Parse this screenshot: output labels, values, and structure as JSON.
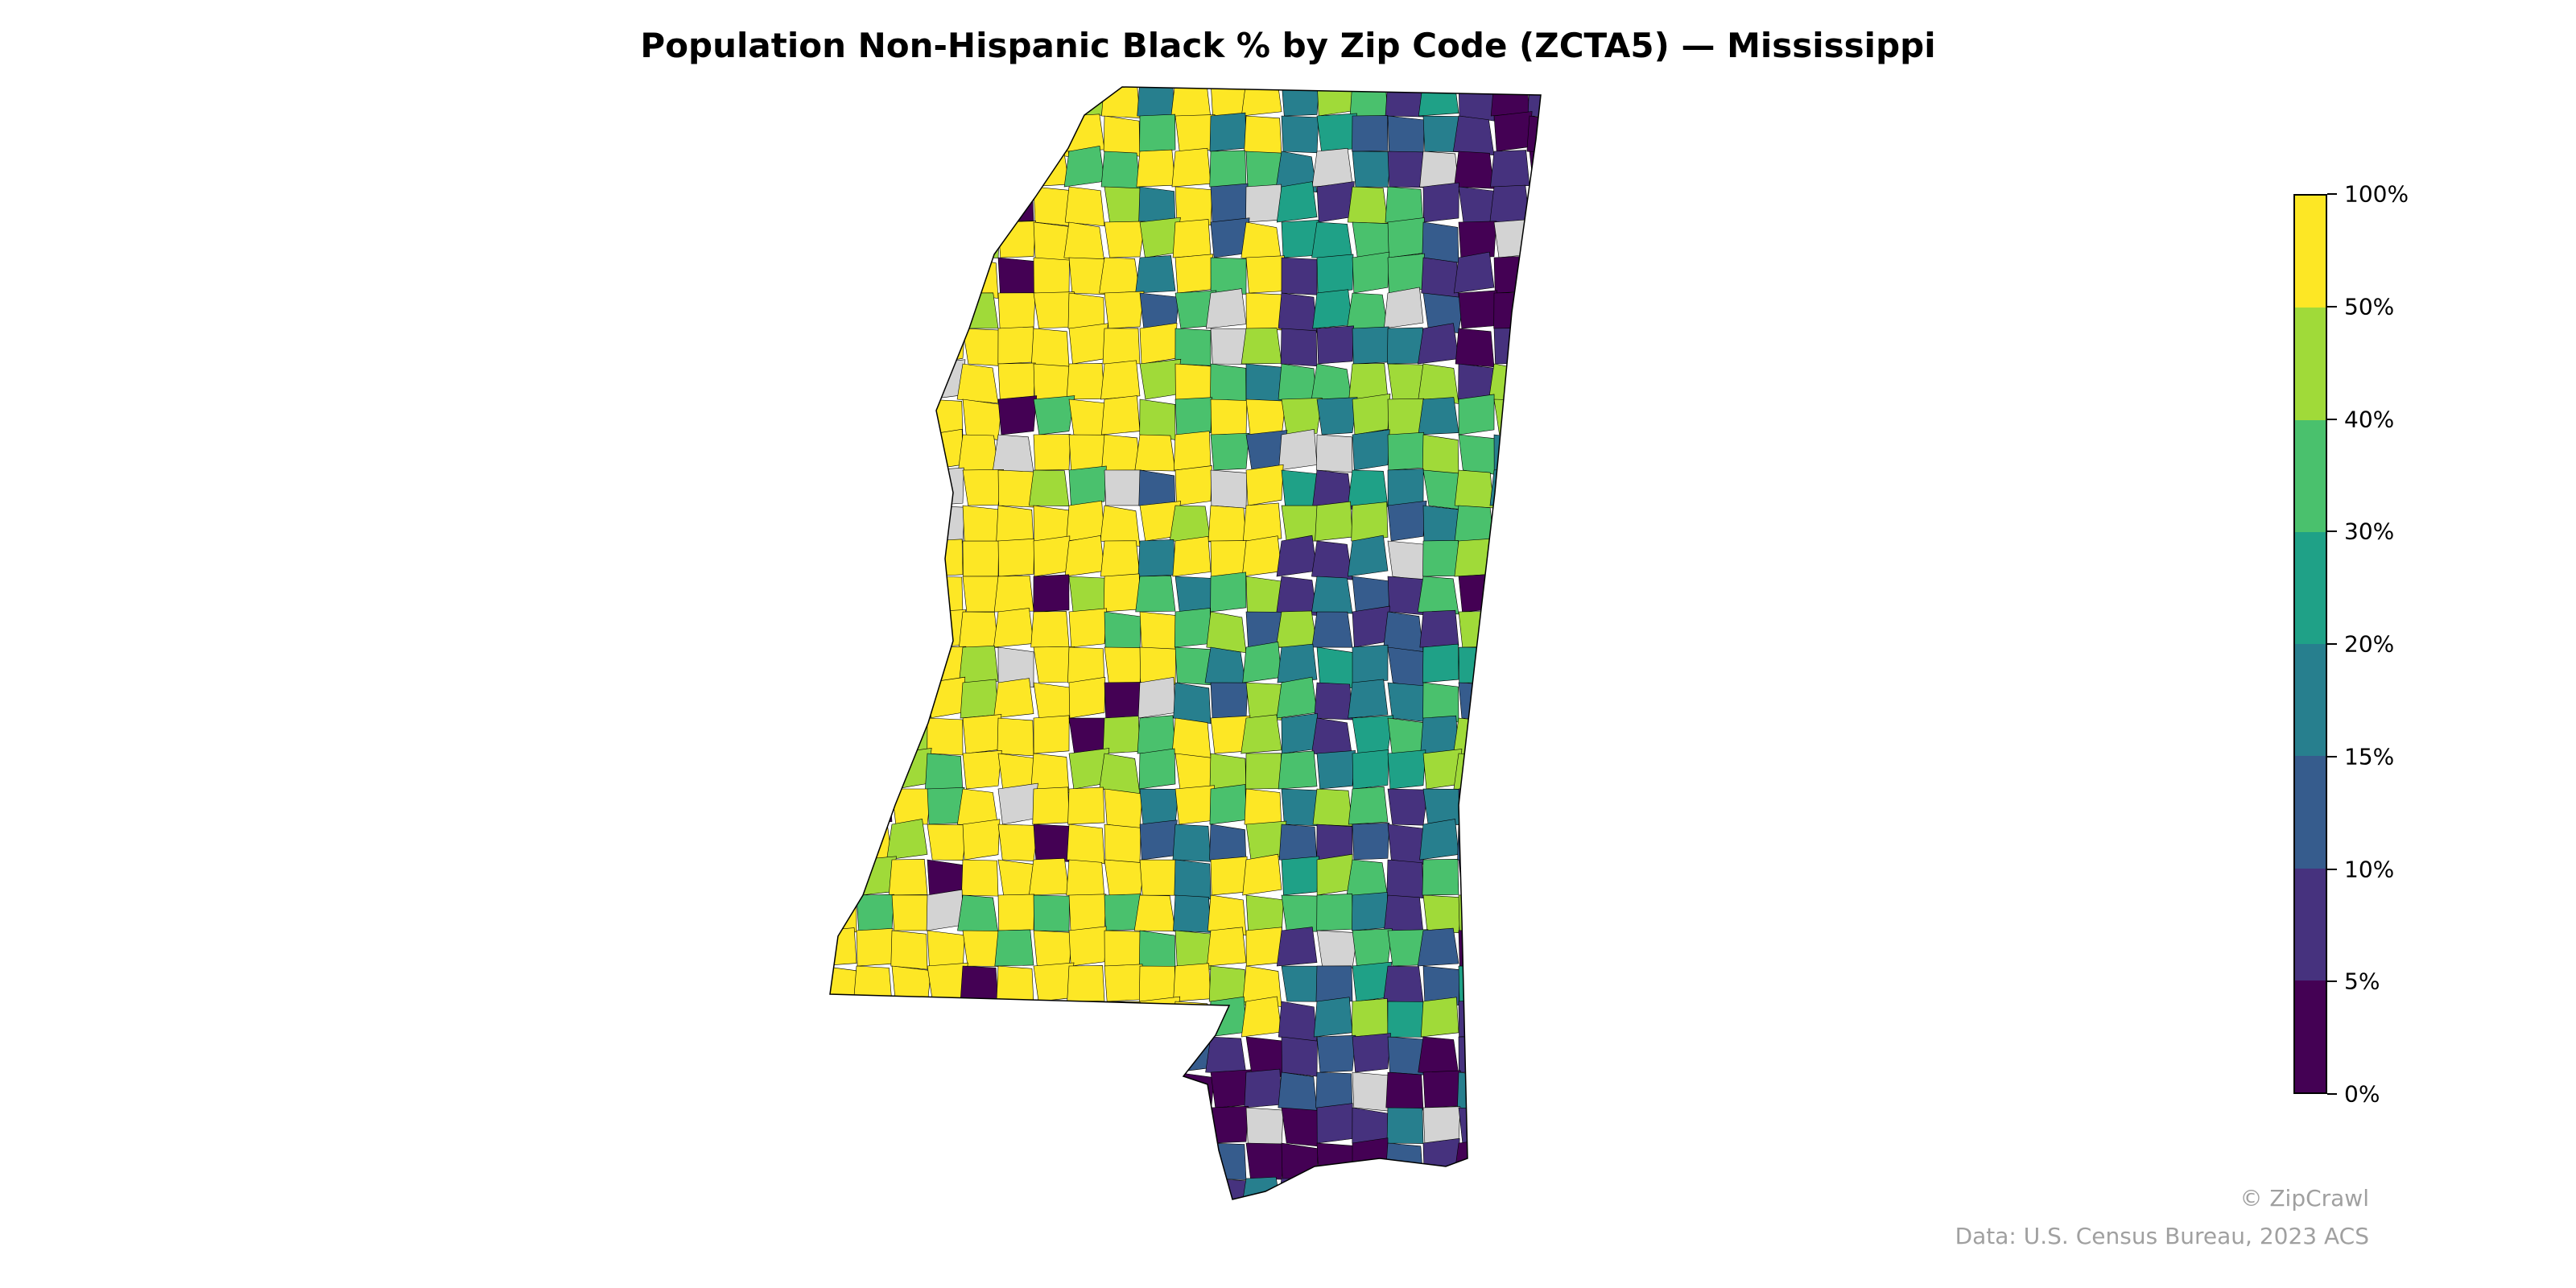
{
  "title": "Population Non-Hispanic Black % by Zip Code (ZCTA5) — Mississippi",
  "chart_data": {
    "type": "choropleth",
    "title": "Population Non-Hispanic Black % by Zip Code (ZCTA5) — Mississippi",
    "region": "Mississippi",
    "unit": "ZCTA5",
    "no_data_color": "#d3d3d3",
    "legend_placement": "right",
    "colorbar": {
      "ticks": [
        "0%",
        "5%",
        "10%",
        "15%",
        "20%",
        "30%",
        "40%",
        "50%",
        "100%"
      ],
      "bins": [
        {
          "range": [
            0,
            5
          ],
          "color": "#440154"
        },
        {
          "range": [
            5,
            10
          ],
          "color": "#46327e"
        },
        {
          "range": [
            10,
            15
          ],
          "color": "#365c8d"
        },
        {
          "range": [
            15,
            20
          ],
          "color": "#277f8e"
        },
        {
          "range": [
            20,
            30
          ],
          "color": "#1fa187"
        },
        {
          "range": [
            30,
            40
          ],
          "color": "#4ac16d"
        },
        {
          "range": [
            40,
            50
          ],
          "color": "#a0da39"
        },
        {
          "range": [
            50,
            100
          ],
          "color": "#fde725"
        }
      ]
    }
  },
  "footer": {
    "copyright": "© ZipCrawl",
    "source": "Data: U.S. Census Bureau, 2023 ACS"
  }
}
